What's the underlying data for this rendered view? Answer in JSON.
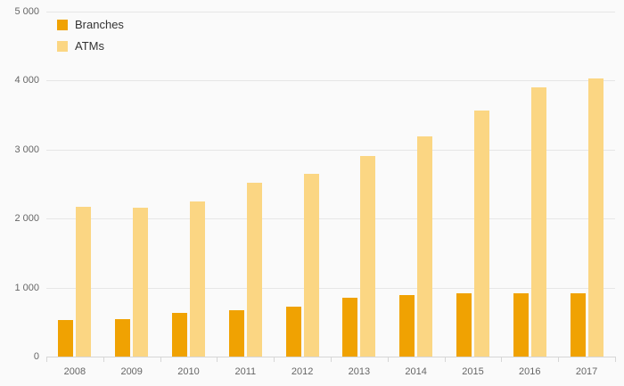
{
  "chart_data": {
    "type": "bar",
    "title": "",
    "xlabel": "",
    "ylabel": "",
    "categories": [
      "2008",
      "2009",
      "2010",
      "2011",
      "2012",
      "2013",
      "2014",
      "2015",
      "2016",
      "2017"
    ],
    "series": [
      {
        "name": "Branches",
        "color": "#F0A202",
        "values": [
          530,
          545,
          630,
          670,
          730,
          855,
          890,
          920,
          920,
          920
        ]
      },
      {
        "name": "ATMs",
        "color": "#FBD683",
        "values": [
          2170,
          2160,
          2250,
          2520,
          2650,
          2910,
          3190,
          3560,
          3900,
          4030
        ]
      }
    ],
    "ylim": [
      0,
      5000
    ],
    "ytick_step": 1000,
    "ytick_labels": [
      "0",
      "1 000",
      "2 000",
      "3 000",
      "4 000",
      "5 000"
    ],
    "grid": true,
    "legend_position": "top-left"
  },
  "colors": {
    "background": "#fafafa",
    "gridline": "#e6e6e6",
    "axis_label": "#666666",
    "legend_text": "#333333"
  }
}
